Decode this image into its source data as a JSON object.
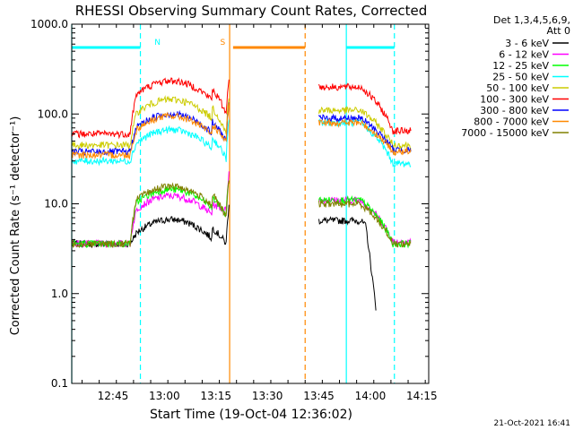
{
  "chart_data": {
    "type": "line",
    "title": "RHESSI Observing Summary Count Rates, Corrected",
    "xlabel": "Start Time (19-Oct-04 12:36:02)",
    "ylabel": "Corrected Count Rate (s⁻¹ detector⁻¹)",
    "yscale": "log",
    "ylim": [
      0.1,
      1000
    ],
    "xlim_minutes": [
      -3,
      101
    ],
    "y_ticks": [
      {
        "value": 1000,
        "label": "1000.0"
      },
      {
        "value": 100,
        "label": "100.0"
      },
      {
        "value": 10,
        "label": "10.0"
      },
      {
        "value": 1,
        "label": "1.0"
      },
      {
        "value": 0.1,
        "label": "0.1"
      }
    ],
    "x_ticks": [
      {
        "minute": 9,
        "label": "12:45"
      },
      {
        "minute": 24,
        "label": "13:00"
      },
      {
        "minute": 39,
        "label": "13:15"
      },
      {
        "minute": 54,
        "label": "13:30"
      },
      {
        "minute": 69,
        "label": "13:45"
      },
      {
        "minute": 84,
        "label": "14:00"
      },
      {
        "minute": 99,
        "label": "14:15"
      }
    ],
    "legend_header": [
      "Det 1,3,4,5,6,9,",
      "Att 0"
    ],
    "series": [
      {
        "name": "3 - 6 keV",
        "color": "#000000",
        "base": 3.6,
        "peak": 6.0,
        "gap_end": 3.6,
        "post_start": 6.5,
        "post_end": 1.0,
        "cut": true
      },
      {
        "name": "6 - 12 keV",
        "color": "#ff00ff",
        "base": 3.6,
        "peak": 11.0,
        "gap_end": 8.5,
        "post_start": 11.0,
        "post_end": 3.8,
        "cut": false
      },
      {
        "name": "12 - 25 keV",
        "color": "#00ff00",
        "base": 3.6,
        "peak": 13.0,
        "gap_end": 7.5,
        "post_start": 11.0,
        "post_end": 3.6,
        "cut": false
      },
      {
        "name": "25 - 50 keV",
        "color": "#00ffff",
        "base": 30.0,
        "peak": 60.0,
        "gap_end": 32.0,
        "post_start": 80.0,
        "post_end": 28.0,
        "cut": false
      },
      {
        "name": "50 - 100 keV",
        "color": "#cccc00",
        "base": 45.0,
        "peak": 130.0,
        "gap_end": 60.0,
        "post_start": 110.0,
        "post_end": 45.0,
        "cut": false
      },
      {
        "name": "100 - 300 keV",
        "color": "#ff0000",
        "base": 60.0,
        "peak": 210.0,
        "gap_end": 100.0,
        "post_start": 200.0,
        "post_end": 65.0,
        "cut": false
      },
      {
        "name": "300 - 800 keV",
        "color": "#0000ff",
        "base": 38.0,
        "peak": 90.0,
        "gap_end": 50.0,
        "post_start": 90.0,
        "post_end": 40.0,
        "cut": false
      },
      {
        "name": "800 - 7000 keV",
        "color": "#ff8800",
        "base": 35.0,
        "peak": 85.0,
        "gap_end": 48.0,
        "post_start": 80.0,
        "post_end": 38.0,
        "cut": false
      },
      {
        "name": "7000 - 15000 keV",
        "color": "#808000",
        "base": 3.6,
        "peak": 14.0,
        "gap_end": 7.0,
        "post_start": 10.0,
        "post_end": 3.6,
        "cut": false
      }
    ],
    "bars": [
      {
        "label": "N",
        "color": "#00ffff",
        "y": 550,
        "segments": [
          [
            -3,
            17
          ],
          [
            77,
            91
          ]
        ],
        "label_minute": 22
      },
      {
        "label": "S",
        "color": "#ff8800",
        "y": 550,
        "segments": [
          [
            44,
            65
          ]
        ],
        "label_minute": 41
      }
    ],
    "vlines": [
      {
        "minute": -3,
        "color": "#00ffff",
        "style": "solid"
      },
      {
        "minute": 17,
        "color": "#00ffff",
        "style": "dashed"
      },
      {
        "minute": 43,
        "color": "#ff8800",
        "style": "solid"
      },
      {
        "minute": 65,
        "color": "#ff8800",
        "style": "dashed"
      },
      {
        "minute": 77,
        "color": "#00ffff",
        "style": "solid"
      },
      {
        "minute": 91,
        "color": "#00ffff",
        "style": "dashed"
      }
    ],
    "data_gap_minutes": [
      43,
      69
    ],
    "data_span_minutes": [
      -3,
      96
    ],
    "grid": false
  },
  "timestamp": "21-Oct-2021 16:41"
}
